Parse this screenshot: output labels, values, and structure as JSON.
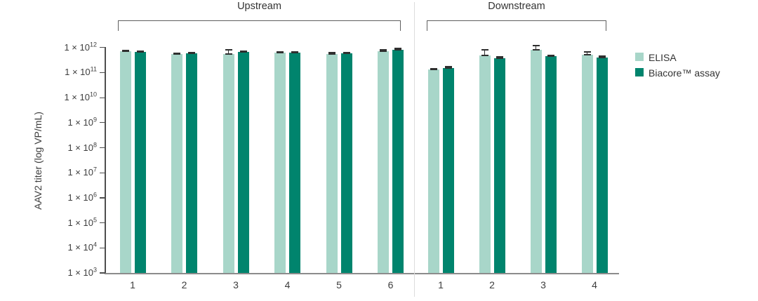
{
  "chart_data": {
    "type": "bar",
    "title": "",
    "xlabel": "",
    "ylabel": "AAV2 titer (log VP/mL)",
    "yscale": "log",
    "ylim": [
      1000.0,
      1000000000000.0
    ],
    "ytick_prefix": "1 × 10",
    "ytick_exponents": [
      12,
      11,
      10,
      9,
      8,
      7,
      6,
      5,
      4,
      3
    ],
    "grid": "off",
    "legend_position": "right",
    "legend": [
      {
        "name": "ELISA",
        "color": "#a8d6c9"
      },
      {
        "name": "Biacore™ assay",
        "color": "#00846d"
      }
    ],
    "sections": [
      {
        "label": "Upstream",
        "groups": [
          {
            "label": "1",
            "elisa": {
              "value": 700000000000.0,
              "err_log": 0.03
            },
            "biacore": {
              "value": 650000000000.0,
              "err_log": 0.03
            }
          },
          {
            "label": "2",
            "elisa": {
              "value": 550000000000.0,
              "err_log": 0.04
            },
            "biacore": {
              "value": 580000000000.0,
              "err_log": 0.03
            }
          },
          {
            "label": "3",
            "elisa": {
              "value": 560000000000.0,
              "err_log": 0.17
            },
            "biacore": {
              "value": 660000000000.0,
              "err_log": 0.04
            }
          },
          {
            "label": "4",
            "elisa": {
              "value": 610000000000.0,
              "err_log": 0.04
            },
            "biacore": {
              "value": 610000000000.0,
              "err_log": 0.04
            }
          },
          {
            "label": "5",
            "elisa": {
              "value": 540000000000.0,
              "err_log": 0.07
            },
            "biacore": {
              "value": 570000000000.0,
              "err_log": 0.03
            }
          },
          {
            "label": "6",
            "elisa": {
              "value": 720000000000.0,
              "err_log": 0.04
            },
            "biacore": {
              "value": 830000000000.0,
              "err_log": 0.05
            }
          }
        ]
      },
      {
        "label": "Downstream",
        "groups": [
          {
            "label": "1",
            "elisa": {
              "value": 130000000000.0,
              "err_log": 0.05
            },
            "biacore": {
              "value": 150000000000.0,
              "err_log": 0.06
            }
          },
          {
            "label": "2",
            "elisa": {
              "value": 490000000000.0,
              "err_log": 0.21
            },
            "biacore": {
              "value": 380000000000.0,
              "err_log": 0.04
            }
          },
          {
            "label": "3",
            "elisa": {
              "value": 830000000000.0,
              "err_log": 0.17
            },
            "biacore": {
              "value": 440000000000.0,
              "err_log": 0.03
            }
          },
          {
            "label": "4",
            "elisa": {
              "value": 520000000000.0,
              "err_log": 0.11
            },
            "biacore": {
              "value": 410000000000.0,
              "err_log": 0.03
            }
          }
        ]
      }
    ]
  }
}
